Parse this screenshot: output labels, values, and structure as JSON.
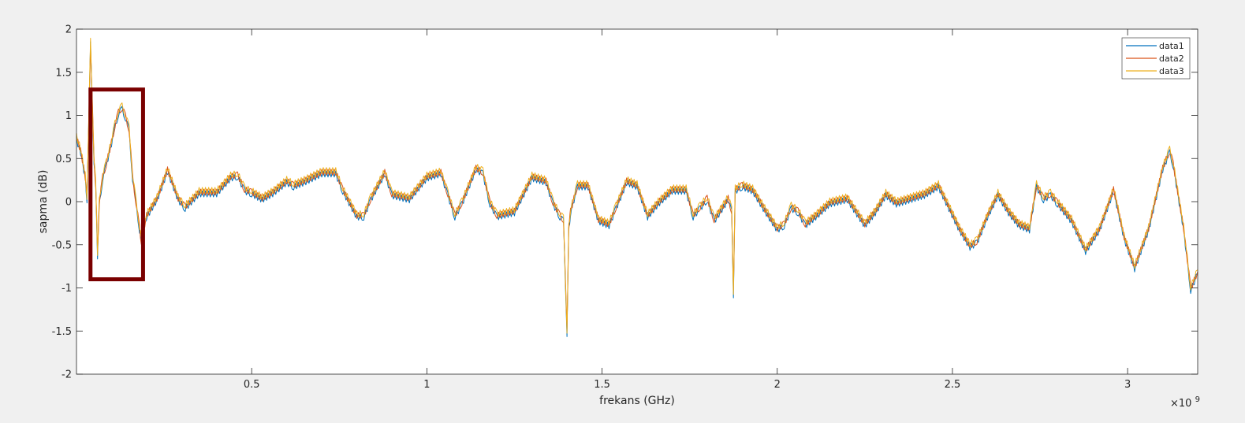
{
  "chart_data": {
    "type": "line",
    "title": "",
    "xlabel": "frekans (GHz)",
    "ylabel": "sapma (dB)",
    "x_exponent_label": "×10",
    "x_exponent_power": "9",
    "xlim": [
      0,
      3.2
    ],
    "ylim": [
      -2,
      2
    ],
    "x_ticks": [
      0.5,
      1,
      1.5,
      2,
      2.5,
      3
    ],
    "x_tick_labels": [
      "0.5",
      "1",
      "1.5",
      "2",
      "2.5",
      "3"
    ],
    "y_ticks": [
      -2,
      -1.5,
      -1,
      -0.5,
      0,
      0.5,
      1,
      1.5,
      2
    ],
    "y_tick_labels": [
      "-2",
      "-1.5",
      "-1",
      "-0.5",
      "0",
      "0.5",
      "1",
      "1.5",
      "2"
    ],
    "grid": false,
    "legend_position": "top-right",
    "x_unit_note": "x values in units of 1e9 (GHz scale as printed)",
    "series": [
      {
        "name": "data1",
        "color": "#0072BD",
        "offset": -0.03
      },
      {
        "name": "data2",
        "color": "#D95319",
        "offset": -0.01
      },
      {
        "name": "data3",
        "color": "#EDB120",
        "offset": 0.01
      }
    ],
    "x": [
      0.0,
      0.012,
      0.025,
      0.03,
      0.04,
      0.05,
      0.055,
      0.06,
      0.065,
      0.075,
      0.085,
      0.1,
      0.11,
      0.12,
      0.13,
      0.14,
      0.15,
      0.16,
      0.17,
      0.18,
      0.185,
      0.2,
      0.23,
      0.26,
      0.29,
      0.31,
      0.35,
      0.4,
      0.44,
      0.46,
      0.48,
      0.5,
      0.53,
      0.56,
      0.6,
      0.62,
      0.65,
      0.7,
      0.74,
      0.76,
      0.8,
      0.82,
      0.84,
      0.88,
      0.9,
      0.95,
      1.0,
      1.04,
      1.06,
      1.08,
      1.1,
      1.14,
      1.16,
      1.18,
      1.2,
      1.25,
      1.3,
      1.34,
      1.36,
      1.38,
      1.39,
      1.4,
      1.405,
      1.41,
      1.43,
      1.46,
      1.49,
      1.52,
      1.54,
      1.57,
      1.6,
      1.63,
      1.66,
      1.7,
      1.74,
      1.76,
      1.78,
      1.8,
      1.82,
      1.86,
      1.87,
      1.875,
      1.88,
      1.9,
      1.93,
      1.96,
      2.0,
      2.02,
      2.04,
      2.06,
      2.08,
      2.11,
      2.15,
      2.2,
      2.25,
      2.28,
      2.31,
      2.34,
      2.38,
      2.42,
      2.46,
      2.49,
      2.52,
      2.55,
      2.57,
      2.6,
      2.63,
      2.66,
      2.69,
      2.72,
      2.74,
      2.76,
      2.78,
      2.8,
      2.84,
      2.88,
      2.92,
      2.96,
      2.99,
      3.02,
      3.06,
      3.1,
      3.12,
      3.13,
      3.16,
      3.18,
      3.2
    ],
    "values": [
      0.75,
      0.6,
      0.3,
      0.05,
      1.85,
      0.5,
      0.2,
      -0.6,
      0.0,
      0.3,
      0.45,
      0.7,
      0.9,
      1.05,
      1.1,
      1.0,
      0.85,
      0.3,
      0.0,
      -0.3,
      -0.45,
      -0.15,
      0.05,
      0.38,
      0.05,
      -0.05,
      0.12,
      0.12,
      0.3,
      0.32,
      0.15,
      0.12,
      0.05,
      0.12,
      0.25,
      0.2,
      0.25,
      0.35,
      0.35,
      0.15,
      -0.15,
      -0.15,
      0.05,
      0.35,
      0.1,
      0.05,
      0.3,
      0.35,
      0.1,
      -0.15,
      0.0,
      0.4,
      0.35,
      0.0,
      -0.15,
      -0.1,
      0.3,
      0.25,
      0.0,
      -0.15,
      -0.2,
      -1.5,
      -0.3,
      -0.1,
      0.2,
      0.2,
      -0.2,
      -0.25,
      -0.05,
      0.25,
      0.2,
      -0.15,
      0.0,
      0.15,
      0.15,
      -0.15,
      -0.05,
      0.05,
      -0.2,
      0.05,
      -0.1,
      -1.05,
      0.15,
      0.2,
      0.15,
      -0.05,
      -0.3,
      -0.25,
      -0.05,
      -0.1,
      -0.25,
      -0.15,
      0.0,
      0.05,
      -0.25,
      -0.1,
      0.1,
      0.0,
      0.05,
      0.1,
      0.2,
      -0.05,
      -0.3,
      -0.5,
      -0.45,
      -0.15,
      0.1,
      -0.1,
      -0.25,
      -0.3,
      0.2,
      0.05,
      0.1,
      0.0,
      -0.2,
      -0.55,
      -0.3,
      0.15,
      -0.4,
      -0.75,
      -0.3,
      0.4,
      0.6,
      0.45,
      -0.3,
      -1.0,
      -0.8
    ]
  },
  "annotation": {
    "type": "highlight-box",
    "color": "#7a0000",
    "x_range": [
      0.04,
      0.19
    ],
    "y_range": [
      -0.9,
      1.3
    ]
  }
}
